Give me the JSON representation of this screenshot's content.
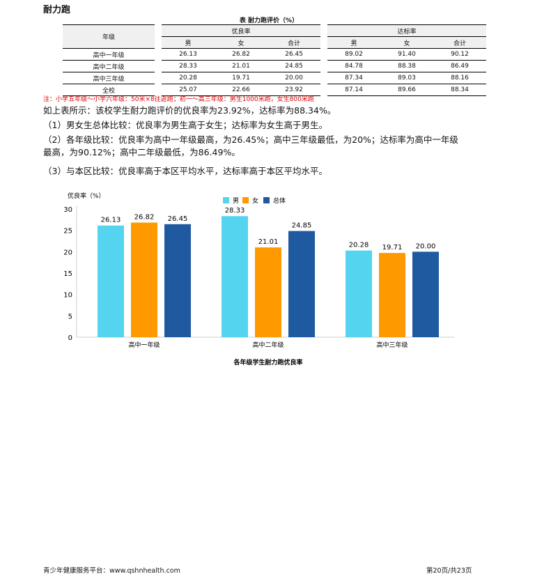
{
  "section_title": "耐力跑",
  "table": {
    "caption": "表 耐力跑评价（%）",
    "grade_header": "年级",
    "group_headers": [
      "优良率",
      "达标率"
    ],
    "sub_headers": [
      "男",
      "女",
      "合计",
      "男",
      "女",
      "合计"
    ],
    "rows": [
      {
        "grade": "高中一年级",
        "values": [
          "26.13",
          "26.82",
          "26.45",
          "89.02",
          "91.40",
          "90.12"
        ]
      },
      {
        "grade": "高中二年级",
        "values": [
          "28.33",
          "21.01",
          "24.85",
          "84.78",
          "88.38",
          "86.49"
        ]
      },
      {
        "grade": "高中三年级",
        "values": [
          "20.28",
          "19.71",
          "20.00",
          "87.34",
          "89.03",
          "88.16"
        ]
      },
      {
        "grade": "全校",
        "values": [
          "25.07",
          "22.66",
          "23.92",
          "87.14",
          "89.66",
          "88.34"
        ]
      }
    ],
    "note": "注：小学五年级～小学六年级：50米×8往返跑；初一～高三年级：男生1000米跑，女生800米跑"
  },
  "paragraphs": [
    "如上表所示：该校学生耐力跑评价的优良率为23.92%，达标率为88.34%。",
    "（1）男女生总体比较：优良率为男生高于女生；达标率为女生高于男生。",
    "（2）各年级比较：优良率为高中一年级最高，为26.45%；高中三年级最低，为20%；达标率为高中一年级最高，为90.12%；高中二年级最低，为86.49%。",
    "（3）与本区比较：优良率高于本区平均水平，达标率高于本区平均水平。"
  ],
  "chart_data": {
    "type": "bar",
    "title": "各年级学生耐力跑优良率",
    "ylabel": "优良率（%）",
    "xlabel": "",
    "categories": [
      "高中一年级",
      "高中二年级",
      "高中三年级"
    ],
    "ylim": [
      0,
      30
    ],
    "yticks": [
      0,
      5,
      10,
      15,
      20,
      25,
      30
    ],
    "grid": false,
    "legend": "top-center",
    "series": [
      {
        "name": "男",
        "color": "#55d4f0",
        "values": [
          26.13,
          28.33,
          20.28
        ]
      },
      {
        "name": "女",
        "color": "#ff9900",
        "values": [
          26.82,
          21.01,
          19.71
        ]
      },
      {
        "name": "总体",
        "color": "#1f5aa0",
        "values": [
          26.45,
          24.85,
          20.0
        ]
      }
    ]
  },
  "footer": {
    "left": "青少年健康服务平台：www.qshnhealth.com",
    "right": "第20页/共23页"
  }
}
